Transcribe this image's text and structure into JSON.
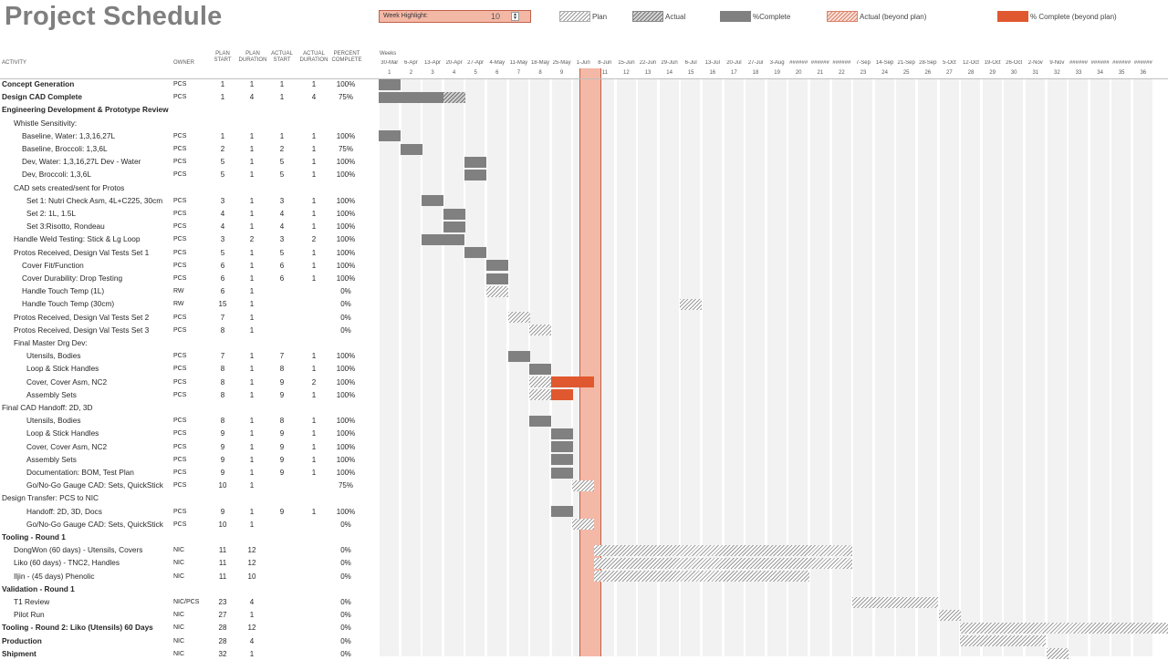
{
  "title": "Project Schedule",
  "week_highlight": {
    "label": "Week Highlight:",
    "value": "10"
  },
  "legend": [
    {
      "label": "Plan",
      "style": "plan"
    },
    {
      "label": "Actual",
      "style": "actual"
    },
    {
      "label": "%Complete",
      "style": "pct"
    },
    {
      "label": "Actual (beyond plan)",
      "style": "abp"
    },
    {
      "label": "% Complete (beyond plan)",
      "style": "pbp"
    }
  ],
  "headers": {
    "activity": "ACTIVITY",
    "owner": "OWNER",
    "plan_start": [
      "PLAN",
      "START"
    ],
    "plan_duration": [
      "PLAN",
      "DURATION"
    ],
    "actual_start": [
      "ACTUAL",
      "START"
    ],
    "actual_duration": [
      "ACTUAL",
      "DURATION"
    ],
    "percent_complete": [
      "PERCENT",
      "COMPLETE"
    ],
    "weeks": "Weeks"
  },
  "week_dates": [
    "30-Mar",
    "6-Apr",
    "13-Apr",
    "20-Apr",
    "27-Apr",
    "4-May",
    "11-May",
    "18-May",
    "25-May",
    "1-Jun",
    "8-Jun",
    "15-Jun",
    "22-Jun",
    "29-Jun",
    "6-Jul",
    "13-Jul",
    "20-Jul",
    "27-Jul",
    "3-Aug",
    "######",
    "######",
    "######",
    "7-Sep",
    "14-Sep",
    "21-Sep",
    "28-Sep",
    "5-Oct",
    "12-Oct",
    "19-Oct",
    "26-Oct",
    "2-Nov",
    "9-Nov",
    "######",
    "######",
    "######",
    "######"
  ],
  "week_numbers": [
    "1",
    "2",
    "3",
    "4",
    "5",
    "6",
    "7",
    "8",
    "9",
    "10",
    "11",
    "12",
    "13",
    "14",
    "15",
    "16",
    "17",
    "18",
    "19",
    "20",
    "21",
    "22",
    "23",
    "24",
    "25",
    "26",
    "27",
    "28",
    "29",
    "30",
    "31",
    "32",
    "33",
    "34",
    "35",
    "36"
  ],
  "highlight_week": 10,
  "rows": [
    {
      "activity": "Concept Generation",
      "indent": 0,
      "bold": true,
      "owner": "PCS",
      "plan_start": "1",
      "plan_duration": "1",
      "actual_start": "1",
      "actual_duration": "1",
      "pct": "100%"
    },
    {
      "activity": "Design CAD Complete",
      "indent": 0,
      "bold": true,
      "owner": "PCS",
      "plan_start": "1",
      "plan_duration": "4",
      "actual_start": "1",
      "actual_duration": "4",
      "pct": "75%"
    },
    {
      "activity": "Engineering Development & Prototype Review",
      "indent": 0,
      "bold": true,
      "owner": "",
      "plan_start": "",
      "plan_duration": "",
      "actual_start": "",
      "actual_duration": "",
      "pct": ""
    },
    {
      "activity": "Whistle Sensitivity:",
      "indent": 1,
      "bold": false,
      "owner": "",
      "plan_start": "",
      "plan_duration": "",
      "actual_start": "",
      "actual_duration": "",
      "pct": ""
    },
    {
      "activity": "Baseline, Water: 1,3,16,27L",
      "indent": 2,
      "bold": false,
      "owner": "PCS",
      "plan_start": "1",
      "plan_duration": "1",
      "actual_start": "1",
      "actual_duration": "1",
      "pct": "100%"
    },
    {
      "activity": "Baseline, Broccoli: 1,3,6L",
      "indent": 2,
      "bold": false,
      "owner": "PCS",
      "plan_start": "2",
      "plan_duration": "1",
      "actual_start": "2",
      "actual_duration": "1",
      "pct": "75%"
    },
    {
      "activity": "Dev, Water: 1,3,16,27L Dev - Water",
      "indent": 2,
      "bold": false,
      "owner": "PCS",
      "plan_start": "5",
      "plan_duration": "1",
      "actual_start": "5",
      "actual_duration": "1",
      "pct": "100%"
    },
    {
      "activity": "Dev, Broccoli: 1,3,6L",
      "indent": 2,
      "bold": false,
      "owner": "PCS",
      "plan_start": "5",
      "plan_duration": "1",
      "actual_start": "5",
      "actual_duration": "1",
      "pct": "100%"
    },
    {
      "activity": "CAD sets created/sent for Protos",
      "indent": 1,
      "bold": false,
      "owner": "",
      "plan_start": "",
      "plan_duration": "",
      "actual_start": "",
      "actual_duration": "",
      "pct": ""
    },
    {
      "activity": "Set 1: Nutri Check Asm, 4L+C225, 30cm",
      "indent": 3,
      "bold": false,
      "owner": "PCS",
      "plan_start": "3",
      "plan_duration": "1",
      "actual_start": "3",
      "actual_duration": "1",
      "pct": "100%"
    },
    {
      "activity": "Set 2: 1L, 1.5L",
      "indent": 3,
      "bold": false,
      "owner": "PCS",
      "plan_start": "4",
      "plan_duration": "1",
      "actual_start": "4",
      "actual_duration": "1",
      "pct": "100%"
    },
    {
      "activity": "Set 3:Risotto, Rondeau",
      "indent": 3,
      "bold": false,
      "owner": "PCS",
      "plan_start": "4",
      "plan_duration": "1",
      "actual_start": "4",
      "actual_duration": "1",
      "pct": "100%"
    },
    {
      "activity": "Handle Weld Testing: Stick & Lg Loop",
      "indent": 1,
      "bold": false,
      "owner": "PCS",
      "plan_start": "3",
      "plan_duration": "2",
      "actual_start": "3",
      "actual_duration": "2",
      "pct": "100%"
    },
    {
      "activity": "Protos Received, Design Val Tests Set 1",
      "indent": 1,
      "bold": false,
      "owner": "PCS",
      "plan_start": "5",
      "plan_duration": "1",
      "actual_start": "5",
      "actual_duration": "1",
      "pct": "100%"
    },
    {
      "activity": "Cover Fit/Function",
      "indent": 2,
      "bold": false,
      "owner": "PCS",
      "plan_start": "6",
      "plan_duration": "1",
      "actual_start": "6",
      "actual_duration": "1",
      "pct": "100%"
    },
    {
      "activity": "Cover Durability: Drop Testing",
      "indent": 2,
      "bold": false,
      "owner": "PCS",
      "plan_start": "6",
      "plan_duration": "1",
      "actual_start": "6",
      "actual_duration": "1",
      "pct": "100%"
    },
    {
      "activity": "Handle Touch Temp (1L)",
      "indent": 2,
      "bold": false,
      "owner": "RW",
      "plan_start": "6",
      "plan_duration": "1",
      "actual_start": "",
      "actual_duration": "",
      "pct": "0%"
    },
    {
      "activity": "Handle Touch Temp (30cm)",
      "indent": 2,
      "bold": false,
      "owner": "RW",
      "plan_start": "15",
      "plan_duration": "1",
      "actual_start": "",
      "actual_duration": "",
      "pct": "0%"
    },
    {
      "activity": "Protos Received, Design Val Tests Set 2",
      "indent": 1,
      "bold": false,
      "owner": "PCS",
      "plan_start": "7",
      "plan_duration": "1",
      "actual_start": "",
      "actual_duration": "",
      "pct": "0%"
    },
    {
      "activity": "Protos Received, Design Val Tests Set 3",
      "indent": 1,
      "bold": false,
      "owner": "PCS",
      "plan_start": "8",
      "plan_duration": "1",
      "actual_start": "",
      "actual_duration": "",
      "pct": "0%"
    },
    {
      "activity": "Final Master Drg Dev:",
      "indent": 1,
      "bold": false,
      "owner": "",
      "plan_start": "",
      "plan_duration": "",
      "actual_start": "",
      "actual_duration": "",
      "pct": ""
    },
    {
      "activity": "Utensils, Bodies",
      "indent": 3,
      "bold": false,
      "owner": "PCS",
      "plan_start": "7",
      "plan_duration": "1",
      "actual_start": "7",
      "actual_duration": "1",
      "pct": "100%"
    },
    {
      "activity": "Loop & Stick Handles",
      "indent": 3,
      "bold": false,
      "owner": "PCS",
      "plan_start": "8",
      "plan_duration": "1",
      "actual_start": "8",
      "actual_duration": "1",
      "pct": "100%"
    },
    {
      "activity": "Cover, Cover Asm, NC2",
      "indent": 3,
      "bold": false,
      "owner": "PCS",
      "plan_start": "8",
      "plan_duration": "1",
      "actual_start": "9",
      "actual_duration": "2",
      "pct": "100%"
    },
    {
      "activity": "Assembly Sets",
      "indent": 3,
      "bold": false,
      "owner": "PCS",
      "plan_start": "8",
      "plan_duration": "1",
      "actual_start": "9",
      "actual_duration": "1",
      "pct": "100%"
    },
    {
      "activity": "Final CAD Handoff: 2D, 3D",
      "indent": 0,
      "bold": false,
      "owner": "",
      "plan_start": "",
      "plan_duration": "",
      "actual_start": "",
      "actual_duration": "",
      "pct": ""
    },
    {
      "activity": "Utensils, Bodies",
      "indent": 3,
      "bold": false,
      "owner": "PCS",
      "plan_start": "8",
      "plan_duration": "1",
      "actual_start": "8",
      "actual_duration": "1",
      "pct": "100%"
    },
    {
      "activity": "Loop & Stick Handles",
      "indent": 3,
      "bold": false,
      "owner": "PCS",
      "plan_start": "9",
      "plan_duration": "1",
      "actual_start": "9",
      "actual_duration": "1",
      "pct": "100%"
    },
    {
      "activity": "Cover, Cover Asm, NC2",
      "indent": 3,
      "bold": false,
      "owner": "PCS",
      "plan_start": "9",
      "plan_duration": "1",
      "actual_start": "9",
      "actual_duration": "1",
      "pct": "100%"
    },
    {
      "activity": "Assembly Sets",
      "indent": 3,
      "bold": false,
      "owner": "PCS",
      "plan_start": "9",
      "plan_duration": "1",
      "actual_start": "9",
      "actual_duration": "1",
      "pct": "100%"
    },
    {
      "activity": "Documentation: BOM, Test Plan",
      "indent": 3,
      "bold": false,
      "owner": "PCS",
      "plan_start": "9",
      "plan_duration": "1",
      "actual_start": "9",
      "actual_duration": "1",
      "pct": "100%"
    },
    {
      "activity": "Go/No-Go Gauge CAD: Sets, QuickStick",
      "indent": 3,
      "bold": false,
      "owner": "PCS",
      "plan_start": "10",
      "plan_duration": "1",
      "actual_start": "",
      "actual_duration": "",
      "pct": "75%"
    },
    {
      "activity": "Design Transfer: PCS to NIC",
      "indent": 0,
      "bold": false,
      "owner": "",
      "plan_start": "",
      "plan_duration": "",
      "actual_start": "",
      "actual_duration": "",
      "pct": ""
    },
    {
      "activity": "Handoff: 2D, 3D, Docs",
      "indent": 3,
      "bold": false,
      "owner": "PCS",
      "plan_start": "9",
      "plan_duration": "1",
      "actual_start": "9",
      "actual_duration": "1",
      "pct": "100%"
    },
    {
      "activity": "Go/No-Go Gauge CAD: Sets, QuickStick",
      "indent": 3,
      "bold": false,
      "owner": "PCS",
      "plan_start": "10",
      "plan_duration": "1",
      "actual_start": "",
      "actual_duration": "",
      "pct": "0%"
    },
    {
      "activity": "Tooling - Round 1",
      "indent": 0,
      "bold": true,
      "owner": "",
      "plan_start": "",
      "plan_duration": "",
      "actual_start": "",
      "actual_duration": "",
      "pct": ""
    },
    {
      "activity": "DongWon (60 days) - Utensils, Covers",
      "indent": 1,
      "bold": false,
      "owner": "NIC",
      "plan_start": "11",
      "plan_duration": "12",
      "actual_start": "",
      "actual_duration": "",
      "pct": "0%"
    },
    {
      "activity": "Liko (60 days) - TNC2, Handles",
      "indent": 1,
      "bold": false,
      "owner": "NIC",
      "plan_start": "11",
      "plan_duration": "12",
      "actual_start": "",
      "actual_duration": "",
      "pct": "0%"
    },
    {
      "activity": "Iljin - (45 days) Phenolic",
      "indent": 1,
      "bold": false,
      "owner": "NIC",
      "plan_start": "11",
      "plan_duration": "10",
      "actual_start": "",
      "actual_duration": "",
      "pct": "0%"
    },
    {
      "activity": "Validation - Round 1",
      "indent": 0,
      "bold": true,
      "owner": "",
      "plan_start": "",
      "plan_duration": "",
      "actual_start": "",
      "actual_duration": "",
      "pct": ""
    },
    {
      "activity": "T1 Review",
      "indent": 1,
      "bold": false,
      "owner": "NIC/PCS",
      "plan_start": "23",
      "plan_duration": "4",
      "actual_start": "",
      "actual_duration": "",
      "pct": "0%"
    },
    {
      "activity": "Pilot Run",
      "indent": 1,
      "bold": false,
      "owner": "NIC",
      "plan_start": "27",
      "plan_duration": "1",
      "actual_start": "",
      "actual_duration": "",
      "pct": "0%"
    },
    {
      "activity": "Tooling - Round 2: Liko (Utensils) 60 Days",
      "indent": 0,
      "bold": true,
      "owner": "NIC",
      "plan_start": "28",
      "plan_duration": "12",
      "actual_start": "",
      "actual_duration": "",
      "pct": "0%"
    },
    {
      "activity": "Production",
      "indent": 0,
      "bold": true,
      "owner": "NIC",
      "plan_start": "28",
      "plan_duration": "4",
      "actual_start": "",
      "actual_duration": "",
      "pct": "0%"
    },
    {
      "activity": "Shipment",
      "indent": 0,
      "bold": true,
      "owner": "NIC",
      "plan_start": "32",
      "plan_duration": "1",
      "actual_start": "",
      "actual_duration": "",
      "pct": "0%"
    }
  ],
  "gantt": [
    [
      {
        "type": "pct",
        "start": 1,
        "dur": 1
      }
    ],
    [
      {
        "type": "pct",
        "start": 1,
        "dur": 3
      },
      {
        "type": "actual",
        "start": 4,
        "dur": 1
      }
    ],
    [],
    [],
    [
      {
        "type": "pct",
        "start": 1,
        "dur": 1
      }
    ],
    [
      {
        "type": "pct",
        "start": 2,
        "dur": 1
      }
    ],
    [
      {
        "type": "pct",
        "start": 5,
        "dur": 1
      }
    ],
    [
      {
        "type": "pct",
        "start": 5,
        "dur": 1
      }
    ],
    [],
    [
      {
        "type": "pct",
        "start": 3,
        "dur": 1
      }
    ],
    [
      {
        "type": "pct",
        "start": 4,
        "dur": 1
      }
    ],
    [
      {
        "type": "pct",
        "start": 4,
        "dur": 1
      }
    ],
    [
      {
        "type": "pct",
        "start": 3,
        "dur": 2
      }
    ],
    [
      {
        "type": "pct",
        "start": 5,
        "dur": 1
      }
    ],
    [
      {
        "type": "pct",
        "start": 6,
        "dur": 1
      }
    ],
    [
      {
        "type": "pct",
        "start": 6,
        "dur": 1
      }
    ],
    [
      {
        "type": "plan",
        "start": 6,
        "dur": 1
      }
    ],
    [
      {
        "type": "plan",
        "start": 15,
        "dur": 1
      }
    ],
    [
      {
        "type": "plan",
        "start": 7,
        "dur": 1
      }
    ],
    [
      {
        "type": "plan",
        "start": 8,
        "dur": 1
      }
    ],
    [],
    [
      {
        "type": "pct",
        "start": 7,
        "dur": 1
      }
    ],
    [
      {
        "type": "pct",
        "start": 8,
        "dur": 1
      }
    ],
    [
      {
        "type": "plan",
        "start": 8,
        "dur": 1
      },
      {
        "type": "pbp",
        "start": 9,
        "dur": 2
      }
    ],
    [
      {
        "type": "plan",
        "start": 8,
        "dur": 1
      },
      {
        "type": "pbp",
        "start": 9,
        "dur": 1
      }
    ],
    [],
    [
      {
        "type": "pct",
        "start": 8,
        "dur": 1
      }
    ],
    [
      {
        "type": "pct",
        "start": 9,
        "dur": 1
      }
    ],
    [
      {
        "type": "pct",
        "start": 9,
        "dur": 1
      }
    ],
    [
      {
        "type": "pct",
        "start": 9,
        "dur": 1
      }
    ],
    [
      {
        "type": "pct",
        "start": 9,
        "dur": 1
      }
    ],
    [
      {
        "type": "plan",
        "start": 10,
        "dur": 1
      }
    ],
    [],
    [
      {
        "type": "pct",
        "start": 9,
        "dur": 1
      }
    ],
    [
      {
        "type": "plan",
        "start": 10,
        "dur": 1
      }
    ],
    [],
    [
      {
        "type": "plan",
        "start": 11,
        "dur": 12
      }
    ],
    [
      {
        "type": "plan",
        "start": 11,
        "dur": 12
      }
    ],
    [
      {
        "type": "plan",
        "start": 11,
        "dur": 10
      }
    ],
    [],
    [
      {
        "type": "plan",
        "start": 23,
        "dur": 4
      }
    ],
    [
      {
        "type": "plan",
        "start": 27,
        "dur": 1
      }
    ],
    [
      {
        "type": "plan",
        "start": 28,
        "dur": 12
      }
    ],
    [
      {
        "type": "plan",
        "start": 28,
        "dur": 4
      }
    ],
    [
      {
        "type": "plan",
        "start": 32,
        "dur": 1
      }
    ]
  ]
}
